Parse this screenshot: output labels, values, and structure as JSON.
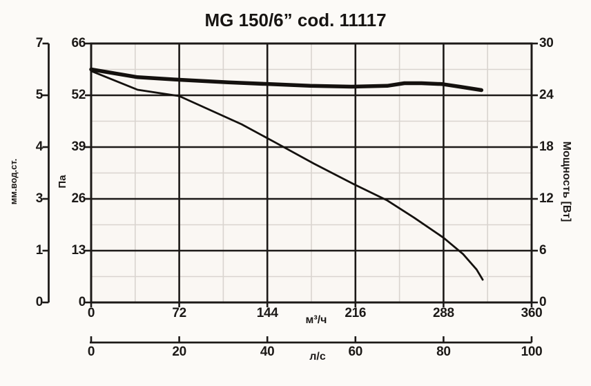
{
  "title": "MG 150/6” cod. 11117",
  "colors": {
    "background": "#fcfaf7",
    "plot_background": "#faf7f3",
    "grid_major": "#1c1917",
    "grid_minor": "#d9d4cf",
    "curve": "#14110e",
    "text": "#1c1917"
  },
  "axes": {
    "left_outer": {
      "label": "мм.вод.ст.",
      "ticks": [
        "7",
        "5",
        "4",
        "3",
        "1",
        "0"
      ]
    },
    "left_inner": {
      "label": "Па",
      "ticks": [
        "66",
        "52",
        "39",
        "26",
        "13",
        "0"
      ]
    },
    "right": {
      "label": "Мощность [Вт]",
      "ticks": [
        "30",
        "24",
        "18",
        "12",
        "6",
        "0"
      ]
    },
    "bottom": {
      "label": "м³/ч",
      "ticks": [
        "0",
        "72",
        "144",
        "216",
        "288",
        "360"
      ]
    },
    "bottom_secondary": {
      "label": "л/с",
      "ticks": [
        "0",
        "20",
        "40",
        "60",
        "80",
        "100"
      ]
    }
  },
  "chart_data": {
    "type": "line",
    "title": "MG 150/6” cod. 11117",
    "xlabel": "м³/ч",
    "x2label": "л/с",
    "ylabel_left_outer": "мм.вод.ст.",
    "ylabel_left_inner": "Па",
    "ylabel_right": "Мощность [Вт]",
    "xlim": [
      0,
      360
    ],
    "x2lim": [
      0,
      100
    ],
    "ylim_pa": [
      0,
      66
    ],
    "ylim_mm": [
      0,
      7
    ],
    "ylim_watt": [
      0,
      30
    ],
    "grid": true,
    "legend": false,
    "series": [
      {
        "name": "pressure-curve",
        "y_axis": "pa",
        "units": [
          "м³/ч",
          "Па"
        ],
        "style": "thin",
        "points": [
          [
            0,
            59.0
          ],
          [
            38,
            54.2
          ],
          [
            72,
            52.6
          ],
          [
            123,
            45.4
          ],
          [
            151,
            40.7
          ],
          [
            182,
            35.4
          ],
          [
            215,
            30.1
          ],
          [
            242,
            26.0
          ],
          [
            264,
            21.6
          ],
          [
            288,
            16.5
          ],
          [
            304,
            12.3
          ],
          [
            315,
            8.4
          ],
          [
            320,
            5.8
          ]
        ]
      },
      {
        "name": "power-curve",
        "y_axis": "watt",
        "units": [
          "м³/ч",
          "Вт"
        ],
        "style": "thick",
        "points": [
          [
            0,
            27.0
          ],
          [
            38,
            26.1
          ],
          [
            72,
            25.8
          ],
          [
            112,
            25.5
          ],
          [
            146,
            25.3
          ],
          [
            179,
            25.1
          ],
          [
            213,
            25.0
          ],
          [
            242,
            25.1
          ],
          [
            256,
            25.4
          ],
          [
            270,
            25.4
          ],
          [
            287,
            25.3
          ],
          [
            301,
            25.0
          ],
          [
            319,
            24.6
          ]
        ]
      }
    ]
  }
}
